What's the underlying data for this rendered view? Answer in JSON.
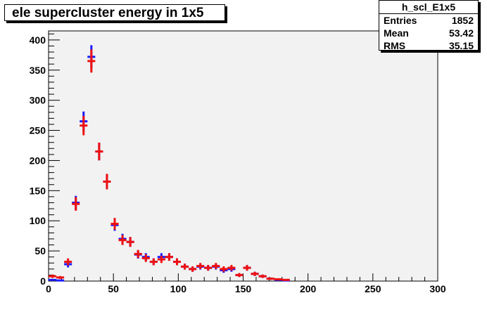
{
  "title": "ele supercluster energy in 1x5",
  "stats": {
    "name": "h_scl_E1x5",
    "rows": [
      {
        "label": "Entries",
        "value": "1852"
      },
      {
        "label": "Mean",
        "value": "53.42"
      },
      {
        "label": "RMS",
        "value": "35.15"
      }
    ]
  },
  "colors": {
    "frame_bg": "#f2f2f2",
    "series_blue": "#1a1aff",
    "series_red": "#ee1111"
  },
  "chart_data": {
    "type": "scatter",
    "title": "ele supercluster energy in 1x5",
    "xlabel": "",
    "ylabel": "",
    "xlim": [
      0,
      300
    ],
    "ylim": [
      0,
      415
    ],
    "xticks": [
      0,
      50,
      100,
      150,
      200,
      250,
      300
    ],
    "yticks": [
      0,
      50,
      100,
      150,
      200,
      250,
      300,
      350,
      400
    ],
    "bin_width": 6,
    "grid": false,
    "series": [
      {
        "color": "#1a1aff",
        "x": [
          3,
          9,
          15,
          21,
          27,
          33,
          39,
          45,
          51,
          57,
          63,
          69,
          75,
          81,
          87,
          93,
          99,
          105,
          111,
          117,
          123,
          129,
          135,
          141,
          147,
          153,
          159,
          165,
          171,
          177,
          183
        ],
        "y": [
          2,
          1,
          28,
          130,
          265,
          372,
          215,
          165,
          93,
          70,
          65,
          44,
          40,
          32,
          40,
          40,
          32,
          24,
          20,
          24,
          22,
          24,
          18,
          20,
          10,
          22,
          12,
          8,
          4,
          2,
          1
        ],
        "err": [
          1.4,
          1,
          5.3,
          11.4,
          16.3,
          19.3,
          14.7,
          12.8,
          9.6,
          8.4,
          8.1,
          6.6,
          6.3,
          5.7,
          6.3,
          6.3,
          5.7,
          4.9,
          4.5,
          4.9,
          4.7,
          4.9,
          4.2,
          4.5,
          3.2,
          4.7,
          3.5,
          2.8,
          2,
          1.4,
          1
        ]
      },
      {
        "color": "#ee1111",
        "x": [
          3,
          9,
          15,
          21,
          27,
          33,
          39,
          45,
          51,
          57,
          63,
          69,
          75,
          81,
          87,
          93,
          99,
          105,
          111,
          117,
          123,
          129,
          135,
          141,
          147,
          153,
          159,
          165,
          171,
          177,
          183
        ],
        "y": [
          8,
          6,
          32,
          128,
          258,
          365,
          215,
          165,
          95,
          68,
          65,
          45,
          38,
          32,
          36,
          40,
          32,
          24,
          20,
          25,
          22,
          25,
          20,
          22,
          10,
          22,
          12,
          8,
          4,
          3,
          2
        ],
        "err": [
          2.8,
          2.4,
          5.7,
          11.3,
          16.1,
          19.1,
          14.7,
          12.8,
          9.7,
          8.2,
          8.1,
          6.7,
          6.2,
          5.7,
          6,
          6.3,
          5.7,
          4.9,
          4.5,
          5,
          4.7,
          5,
          4.5,
          4.7,
          3.2,
          4.7,
          3.5,
          2.8,
          2,
          1.7,
          1.4
        ]
      }
    ]
  }
}
